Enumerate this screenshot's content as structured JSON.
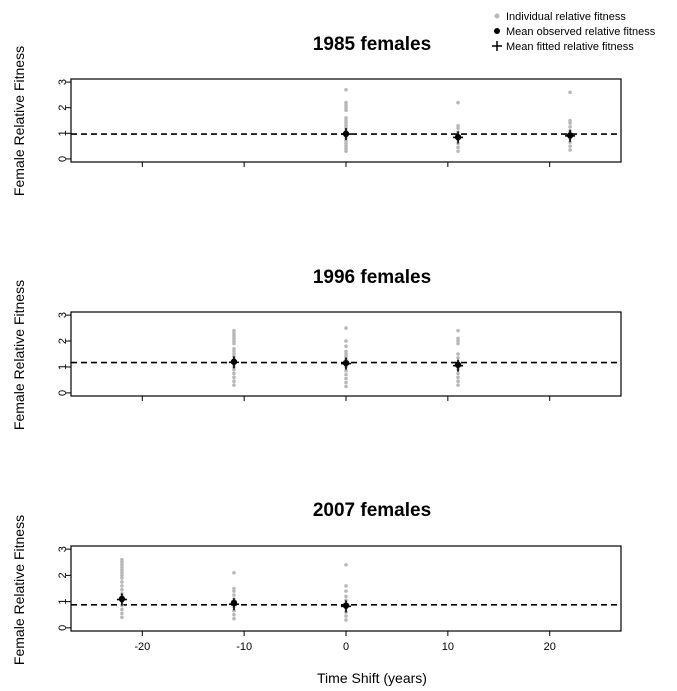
{
  "legend": {
    "items": [
      {
        "label": "Individual relative fitness",
        "marker": "dot-grey"
      },
      {
        "label": "Mean observed relative fitness",
        "marker": "dot-black"
      },
      {
        "label": "Mean fitted relative fitness",
        "marker": "plus"
      }
    ]
  },
  "x_axis_label": "Time Shift (years)",
  "colors": {
    "individual": "#b8b8b8",
    "mean": "#000000",
    "frame": "#000000"
  },
  "chart_data": [
    {
      "type": "scatter",
      "title": "1985 females",
      "ylabel": "Female Relative Fitness",
      "xlim": [
        -27,
        27
      ],
      "ylim": [
        0,
        3
      ],
      "x_ticks": [
        -20,
        -10,
        0,
        10,
        20
      ],
      "x_tick_labels": [],
      "y_ticks": [
        0,
        1,
        2,
        3
      ],
      "y_tick_labels": [
        "0",
        "1",
        "2",
        "3"
      ],
      "reference_line": 0.97,
      "groups": [
        {
          "x": 0,
          "mean_observed": 0.98,
          "mean_fitted": 0.97,
          "individuals": [
            0.3,
            0.4,
            0.5,
            0.6,
            0.7,
            0.8,
            0.9,
            1.0,
            1.1,
            1.2,
            1.3,
            1.4,
            1.5,
            1.6,
            1.9,
            2.0,
            2.1,
            2.2,
            2.7
          ]
        },
        {
          "x": 11,
          "mean_observed": 0.85,
          "mean_fitted": 0.84,
          "individuals": [
            0.3,
            0.45,
            0.6,
            0.75,
            0.9,
            1.05,
            1.2,
            1.3,
            2.2
          ]
        },
        {
          "x": 22,
          "mean_observed": 0.92,
          "mean_fitted": 0.9,
          "individuals": [
            0.35,
            0.5,
            0.65,
            0.8,
            0.95,
            1.1,
            1.25,
            1.4,
            1.5,
            2.6
          ]
        }
      ]
    },
    {
      "type": "scatter",
      "title": "1996 females",
      "ylabel": "Female Relative Fitness",
      "xlim": [
        -27,
        27
      ],
      "ylim": [
        0,
        3
      ],
      "x_ticks": [
        -20,
        -10,
        0,
        10,
        20
      ],
      "x_tick_labels": [],
      "y_ticks": [
        0,
        1,
        2,
        3
      ],
      "y_tick_labels": [
        "0",
        "1",
        "2",
        "3"
      ],
      "reference_line": 1.17,
      "groups": [
        {
          "x": -11,
          "mean_observed": 1.2,
          "mean_fitted": 1.18,
          "individuals": [
            0.3,
            0.45,
            0.6,
            0.75,
            0.9,
            1.0,
            1.1,
            1.2,
            1.3,
            1.4,
            1.5,
            1.6,
            1.7,
            1.9,
            2.0,
            2.1,
            2.2,
            2.3,
            2.4
          ]
        },
        {
          "x": 0,
          "mean_observed": 1.15,
          "mean_fitted": 1.13,
          "individuals": [
            0.25,
            0.4,
            0.55,
            0.7,
            0.85,
            1.0,
            1.1,
            1.2,
            1.3,
            1.4,
            1.5,
            1.6,
            1.8,
            2.0,
            2.5
          ]
        },
        {
          "x": 11,
          "mean_observed": 1.08,
          "mean_fitted": 1.05,
          "individuals": [
            0.3,
            0.45,
            0.6,
            0.75,
            0.9,
            1.05,
            1.2,
            1.35,
            1.5,
            1.9,
            2.0,
            2.1,
            2.4
          ]
        }
      ]
    },
    {
      "type": "scatter",
      "title": "2007 females",
      "ylabel": "Female Relative Fitness",
      "xlim": [
        -27,
        27
      ],
      "ylim": [
        0,
        3
      ],
      "x_ticks": [
        -20,
        -10,
        0,
        10,
        20
      ],
      "x_tick_labels": [
        "-20",
        "-10",
        "0",
        "10",
        "20"
      ],
      "y_ticks": [
        0,
        1,
        2,
        3
      ],
      "y_tick_labels": [
        "0",
        "1",
        "2",
        "3"
      ],
      "reference_line": 0.88,
      "groups": [
        {
          "x": -22,
          "mean_observed": 1.1,
          "mean_fitted": 1.08,
          "individuals": [
            0.4,
            0.55,
            0.7,
            0.85,
            1.0,
            1.1,
            1.2,
            1.3,
            1.45,
            1.6,
            1.75,
            1.9,
            2.0,
            2.1,
            2.2,
            2.3,
            2.4,
            2.5,
            2.6
          ]
        },
        {
          "x": -11,
          "mean_observed": 0.95,
          "mean_fitted": 0.9,
          "individuals": [
            0.35,
            0.5,
            0.65,
            0.8,
            0.95,
            1.1,
            1.25,
            1.4,
            1.5,
            2.1
          ]
        },
        {
          "x": 0,
          "mean_observed": 0.85,
          "mean_fitted": 0.82,
          "individuals": [
            0.3,
            0.45,
            0.6,
            0.75,
            0.9,
            1.05,
            1.2,
            1.4,
            1.6,
            2.4
          ]
        }
      ]
    }
  ]
}
